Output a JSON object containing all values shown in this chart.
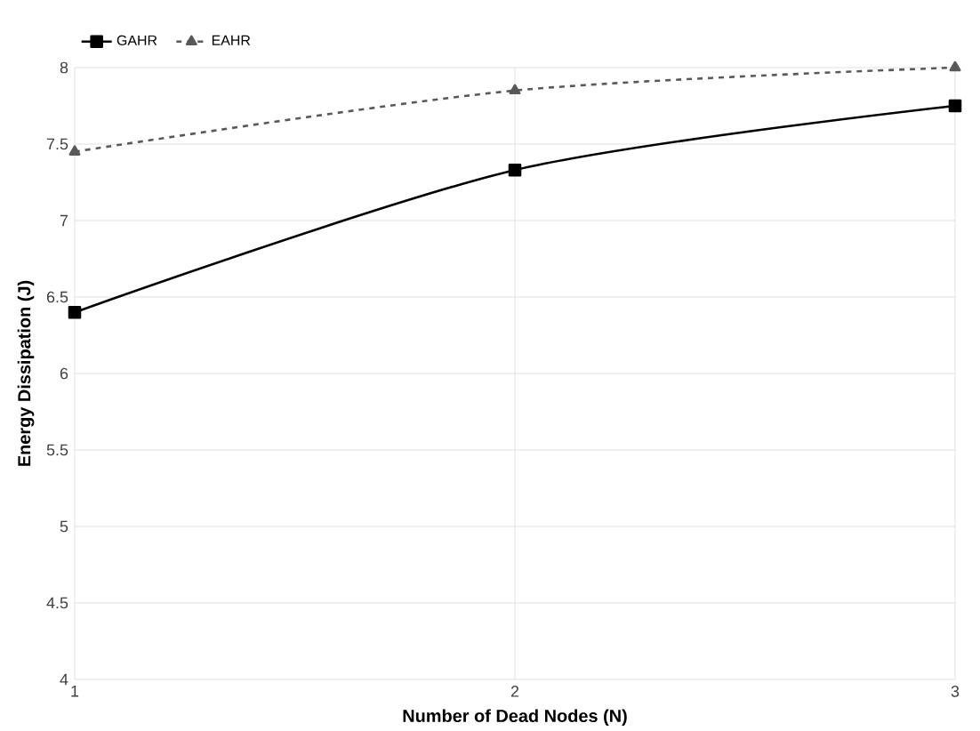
{
  "chart_data": {
    "type": "line",
    "xlabel": "Number of Dead Nodes (N)",
    "ylabel": "Energy Dissipation (J)",
    "x": [
      1,
      2,
      3
    ],
    "series": [
      {
        "name": "GAHR",
        "color": "#000000",
        "values": [
          6.4,
          7.33,
          7.75
        ],
        "marker": "square",
        "line_style": "solid"
      },
      {
        "name": "EAHR",
        "color": "#595959",
        "values": [
          7.45,
          7.85,
          8.0
        ],
        "marker": "triangle",
        "line_style": "dashed"
      }
    ],
    "xlim": [
      1,
      3
    ],
    "xticks": [
      1,
      2,
      3
    ],
    "ylim": [
      4,
      8
    ],
    "yticks": [
      4,
      4.5,
      5,
      5.5,
      6,
      6.5,
      7,
      7.5,
      8
    ],
    "grid": true,
    "legend": "top left"
  }
}
